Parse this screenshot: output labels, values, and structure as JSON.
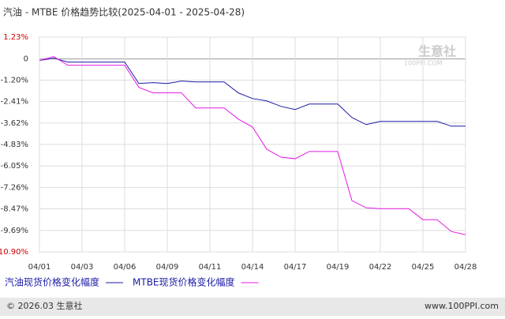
{
  "chart_data": {
    "type": "line",
    "title": "汽油 - MTBE 价格趋势比较(2025-04-01 - 2025-04-28)",
    "categories": [
      "04/01",
      null,
      null,
      "04/03",
      null,
      null,
      "04/06",
      null,
      null,
      "04/09",
      null,
      null,
      "04/11",
      null,
      null,
      "04/14",
      null,
      null,
      "04/17",
      null,
      null,
      "04/19",
      null,
      null,
      "04/22",
      null,
      null,
      "04/25",
      null,
      null,
      "04/28"
    ],
    "series": [
      {
        "name": "汽油现货价格变化幅度",
        "color": "#1a1aa6",
        "values": [
          -0.09,
          0.04,
          -0.18,
          -0.18,
          -0.18,
          -0.18,
          -0.18,
          -1.39,
          -1.34,
          -1.39,
          -1.25,
          -1.3,
          -1.3,
          -1.3,
          -1.92,
          -2.24,
          -2.37,
          -2.68,
          -2.86,
          -2.55,
          -2.55,
          -2.55,
          -3.31,
          -3.71,
          -3.53,
          -3.53,
          -3.53,
          -3.53,
          -3.53,
          -3.8,
          -3.8
        ]
      },
      {
        "name": "MTBE现货价格变化幅度",
        "color": "#e619e6",
        "values": [
          -0.09,
          0.13,
          -0.36,
          -0.36,
          -0.36,
          -0.36,
          -0.36,
          -1.61,
          -1.92,
          -1.92,
          -1.92,
          -2.77,
          -2.77,
          -2.77,
          -3.4,
          -3.85,
          -5.1,
          -5.55,
          -5.64,
          -5.23,
          -5.23,
          -5.23,
          -8.01,
          -8.41,
          -8.46,
          -8.46,
          -8.46,
          -9.08,
          -9.08,
          -9.75,
          -9.93
        ]
      }
    ],
    "ylim": [
      -10.9,
      1.23
    ],
    "yticks": [
      {
        "value": 1.23,
        "label": "1.23%"
      },
      0,
      {
        "value": -1.2,
        "label": "-1.20%"
      },
      {
        "value": -2.41,
        "label": "-2.41%"
      },
      {
        "value": -3.62,
        "label": "-3.62%"
      },
      {
        "value": -4.83,
        "label": "-4.83%"
      },
      {
        "value": -6.05,
        "label": "-6.05%"
      },
      {
        "value": -7.26,
        "label": "-7.26%"
      },
      {
        "value": -8.47,
        "label": "-8.47%"
      },
      {
        "value": -9.69,
        "label": "-9.69%"
      },
      {
        "value": -10.9,
        "label": "-10.90%"
      }
    ],
    "grid": true,
    "watermark": [
      "生意社",
      "100PPI.COM"
    ],
    "footer_left": "© 2026.03 生意社",
    "footer_right": "www.100PPI.com"
  }
}
